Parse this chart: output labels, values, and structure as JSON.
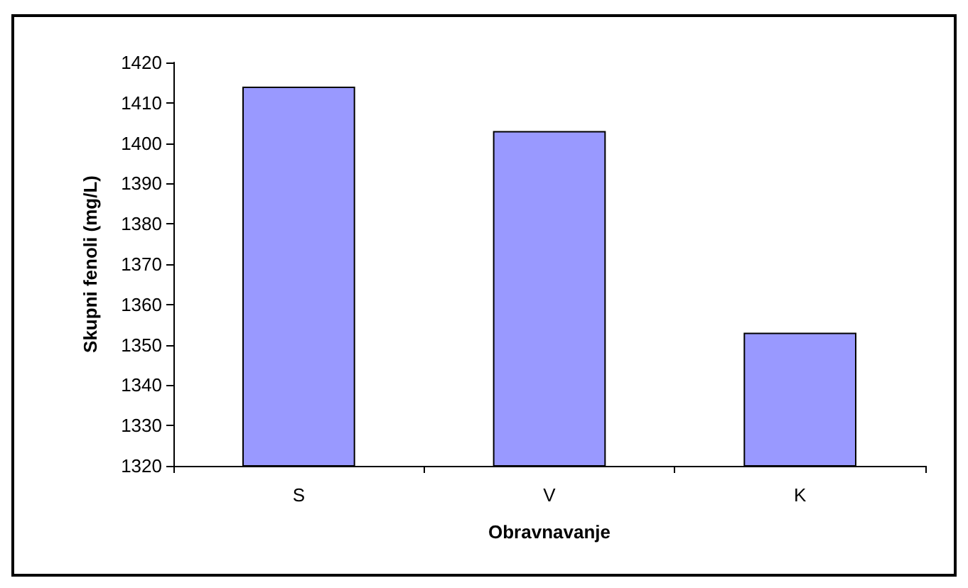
{
  "chart_data": {
    "type": "bar",
    "xlabel": "Obravnavanje",
    "ylabel": "Skupni fenoli (mg/L)",
    "categories": [
      "S",
      "V",
      "K"
    ],
    "values": [
      1414,
      1403,
      1353
    ],
    "color": "#9999ff",
    "ylim": [
      1320,
      1420
    ],
    "yticks": [
      1320,
      1330,
      1340,
      1350,
      1360,
      1370,
      1380,
      1390,
      1400,
      1410,
      1420
    ],
    "grid": false
  }
}
